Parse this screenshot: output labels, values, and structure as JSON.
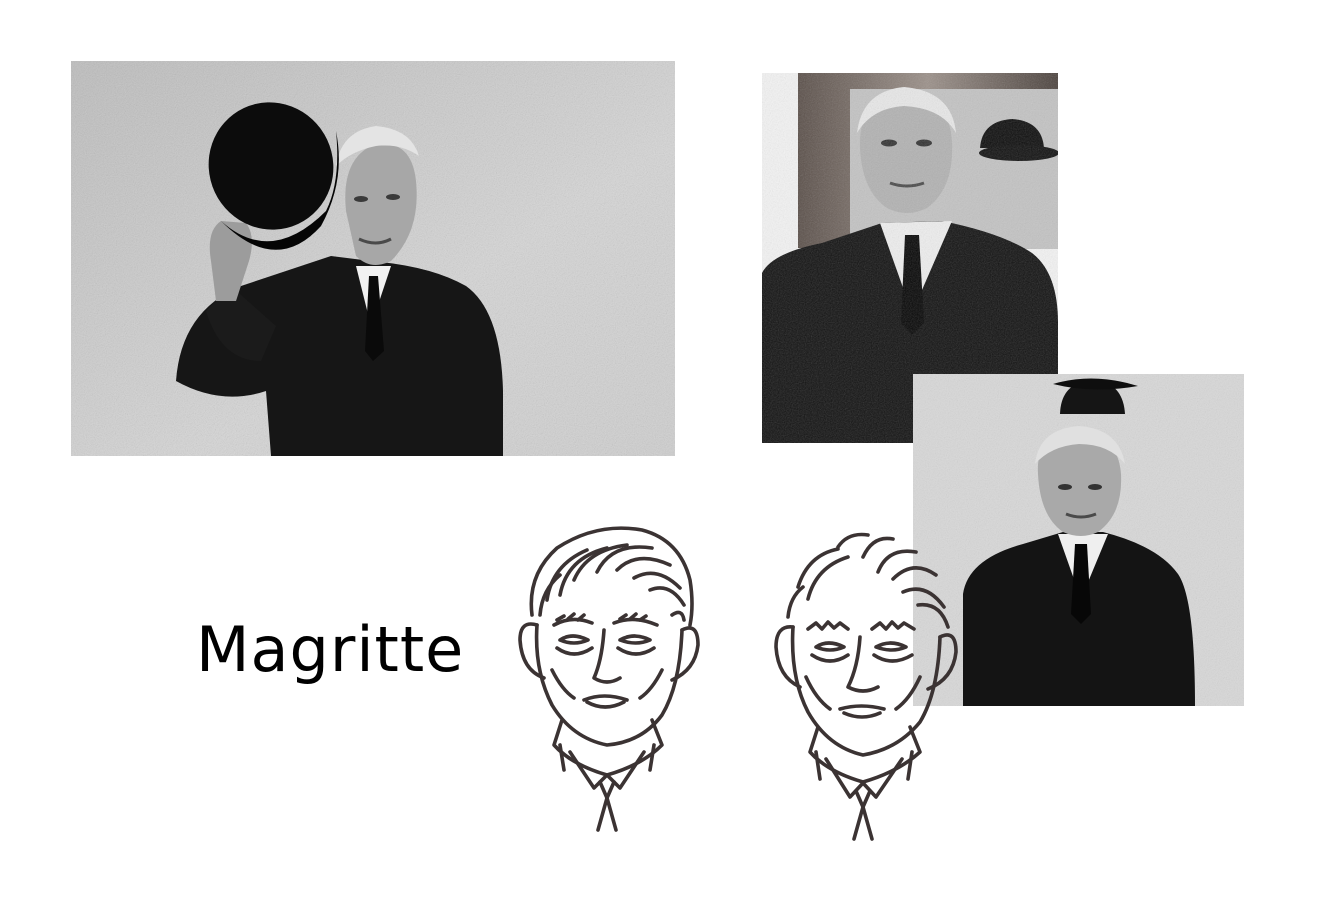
{
  "title": {
    "text": "Magritte"
  },
  "photos": [
    {
      "id": "photo-bowler-tip",
      "subject": "portrait-photo-raising-bowler-hat"
    },
    {
      "id": "photo-frame",
      "subject": "portrait-photo-in-front-of-painting"
    },
    {
      "id": "photo-wall",
      "subject": "portrait-photo-bowler-above-head"
    }
  ],
  "sketches": [
    {
      "id": "sketch-front",
      "subject": "line-drawing-portrait-front"
    },
    {
      "id": "sketch-variant",
      "subject": "line-drawing-portrait-variant"
    }
  ],
  "colors": {
    "background": "#ffffff",
    "ink": "#3b3333",
    "wall_light": "#c9c9c9",
    "suit": "#161616"
  }
}
